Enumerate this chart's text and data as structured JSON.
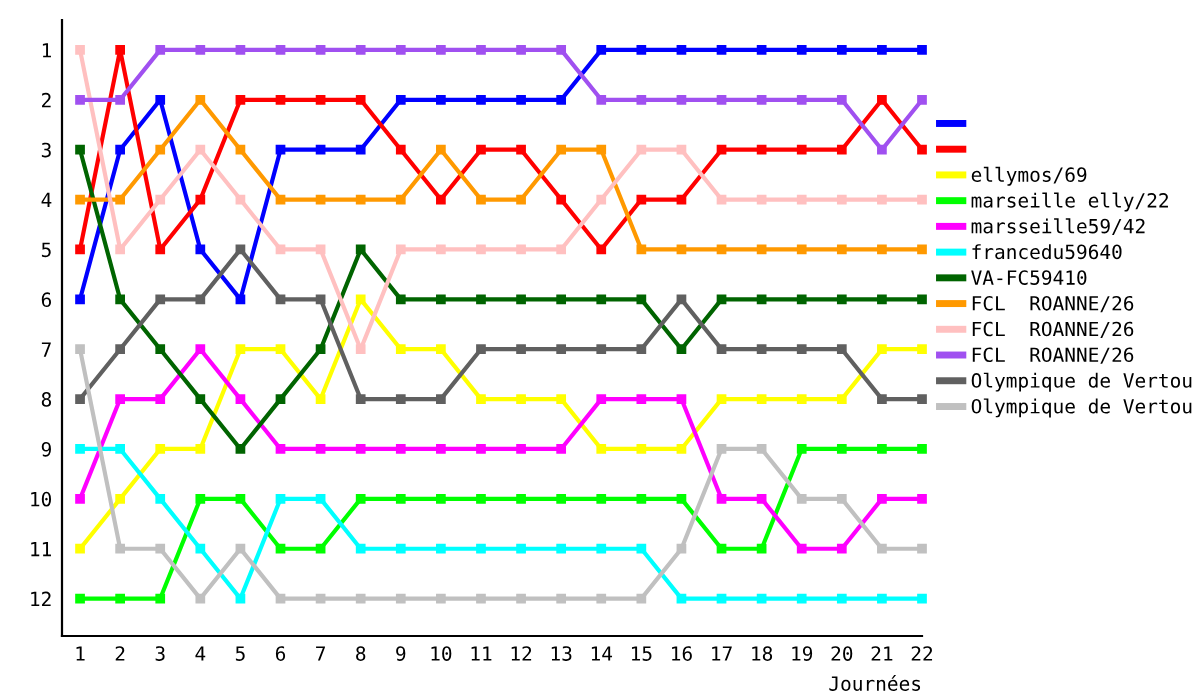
{
  "chart_data": {
    "type": "line",
    "xlabel": "Journées",
    "marker": "square",
    "line_style": "solid",
    "legend": "right",
    "grid": false,
    "x": [
      1,
      2,
      3,
      4,
      5,
      6,
      7,
      8,
      9,
      10,
      11,
      12,
      13,
      14,
      15,
      16,
      17,
      18,
      19,
      20,
      21,
      22
    ],
    "xlim": [
      0.55,
      22
    ],
    "xticks": [
      1,
      2,
      3,
      4,
      5,
      6,
      7,
      8,
      9,
      10,
      11,
      12,
      13,
      14,
      15,
      16,
      17,
      18,
      19,
      20,
      21,
      22
    ],
    "ylim": [
      12.75,
      0.4
    ],
    "yticks": [
      1,
      2,
      3,
      4,
      5,
      6,
      7,
      8,
      9,
      10,
      11,
      12
    ],
    "series": [
      {
        "color": "#0000ff",
        "values": [
          6,
          3,
          2,
          5,
          6,
          3,
          3,
          3,
          2,
          2,
          2,
          2,
          2,
          1,
          1,
          1,
          1,
          1,
          1,
          1,
          1,
          1
        ]
      },
      {
        "color": "#ff0000",
        "values": [
          5,
          1,
          5,
          4,
          2,
          2,
          2,
          2,
          3,
          4,
          3,
          3,
          4,
          5,
          4,
          4,
          3,
          3,
          3,
          3,
          2,
          3
        ]
      },
      {
        "name": "ellymos/69",
        "color": "#ffff00",
        "values": [
          11,
          10,
          9,
          9,
          7,
          7,
          8,
          6,
          7,
          7,
          8,
          8,
          8,
          9,
          9,
          9,
          8,
          8,
          8,
          8,
          7,
          7
        ]
      },
      {
        "name": "marseille elly/22",
        "color": "#00ff00",
        "values": [
          12,
          12,
          12,
          10,
          10,
          11,
          11,
          10,
          10,
          10,
          10,
          10,
          10,
          10,
          10,
          10,
          11,
          11,
          9,
          9,
          9,
          9
        ]
      },
      {
        "name": "marsseille59/42",
        "color": "#ff00ff",
        "values": [
          10,
          8,
          8,
          7,
          8,
          9,
          9,
          9,
          9,
          9,
          9,
          9,
          9,
          8,
          8,
          8,
          10,
          10,
          11,
          11,
          10,
          10
        ]
      },
      {
        "name": "francedu59640",
        "color": "#00ffff",
        "values": [
          9,
          9,
          10,
          11,
          12,
          10,
          10,
          11,
          11,
          11,
          11,
          11,
          11,
          11,
          11,
          12,
          12,
          12,
          12,
          12,
          12,
          12
        ]
      },
      {
        "name": "VA-FC59410",
        "color": "#006400",
        "values": [
          3,
          6,
          7,
          8,
          9,
          8,
          7,
          5,
          6,
          6,
          6,
          6,
          6,
          6,
          6,
          7,
          6,
          6,
          6,
          6,
          6,
          6
        ]
      },
      {
        "name": "FCL  ROANNE/26",
        "color": "#ff9900",
        "values": [
          4,
          4,
          3,
          2,
          3,
          4,
          4,
          4,
          4,
          3,
          4,
          4,
          3,
          3,
          5,
          5,
          5,
          5,
          5,
          5,
          5,
          5
        ]
      },
      {
        "name": "FCL  ROANNE/26",
        "color": "#ffc0c0",
        "values": [
          1,
          5,
          4,
          3,
          4,
          5,
          5,
          7,
          5,
          5,
          5,
          5,
          5,
          4,
          3,
          3,
          4,
          4,
          4,
          4,
          4,
          4
        ]
      },
      {
        "name": "FCL  ROANNE/26",
        "color": "#a050f0",
        "values": [
          2,
          2,
          1,
          1,
          1,
          1,
          1,
          1,
          1,
          1,
          1,
          1,
          1,
          2,
          2,
          2,
          2,
          2,
          2,
          2,
          3,
          2
        ]
      },
      {
        "name": "Olympique de Vertou",
        "color": "#606060",
        "values": [
          8,
          7,
          6,
          6,
          5,
          6,
          6,
          8,
          8,
          8,
          7,
          7,
          7,
          7,
          7,
          6,
          7,
          7,
          7,
          7,
          8,
          8
        ]
      },
      {
        "name": "Olympique de Vertou",
        "color": "#c0c0c0",
        "values": [
          7,
          11,
          11,
          12,
          11,
          12,
          12,
          12,
          12,
          12,
          12,
          12,
          12,
          12,
          12,
          11,
          9,
          9,
          10,
          10,
          11,
          11
        ]
      }
    ]
  }
}
